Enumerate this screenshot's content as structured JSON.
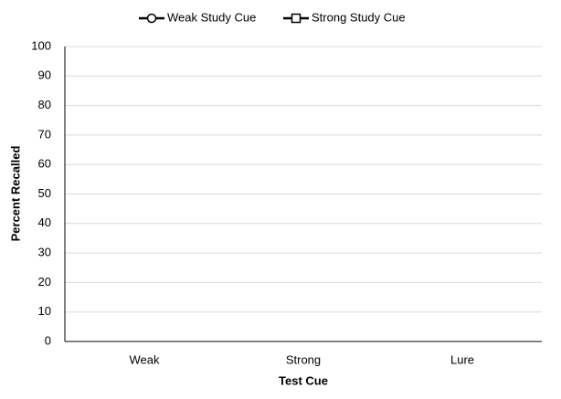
{
  "chart_data": {
    "type": "line",
    "categories": [
      "Weak",
      "Strong",
      "Lure"
    ],
    "series": [
      {
        "name": "Weak Study Cue",
        "color": "#000000",
        "marker": "circle",
        "values": [
          null,
          null,
          null
        ]
      },
      {
        "name": "Strong Study Cue",
        "color": "#000000",
        "marker": "square",
        "values": [
          null,
          null,
          null
        ]
      }
    ],
    "xlabel": "Test Cue",
    "ylabel": "Percent Recalled",
    "ylim": [
      0,
      100
    ],
    "yticks": [
      0,
      10,
      20,
      30,
      40,
      50,
      60,
      70,
      80,
      90,
      100
    ],
    "grid": true,
    "legend": "top"
  }
}
